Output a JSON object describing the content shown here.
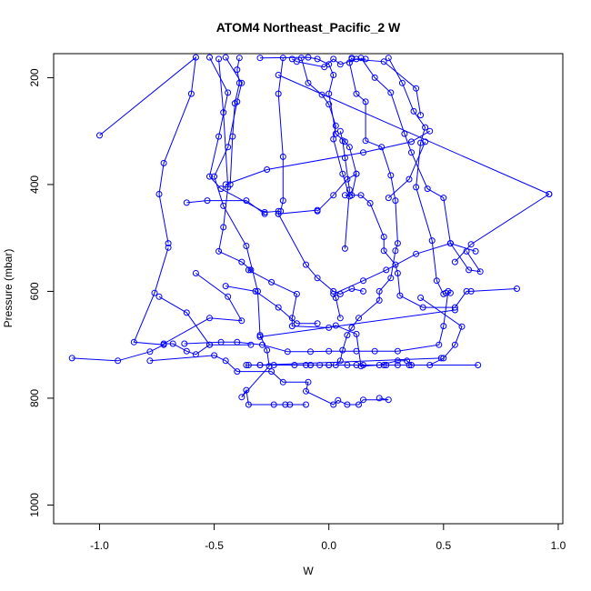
{
  "chart_data": {
    "type": "line",
    "title": "ATOM4 Northeast_Pacific_2 W",
    "xlabel": "W",
    "ylabel": "Pressure (mbar)",
    "xlim": [
      -1.2,
      1.02
    ],
    "ylim": [
      1035,
      155
    ],
    "y_reversed": true,
    "xticks": [
      -1.0,
      -0.5,
      0.0,
      0.5,
      1.0
    ],
    "xtick_labels": [
      "-1.0",
      "-0.5",
      "0.0",
      "0.5",
      "1.0"
    ],
    "yticks": [
      200,
      400,
      600,
      800,
      1000
    ],
    "ytick_labels": [
      "200",
      "400",
      "600",
      "800",
      "1000"
    ],
    "grid": false,
    "legend": "none",
    "line_color": "#0000ff",
    "marker": "open-circle",
    "series": [
      {
        "points": [
          [
            -0.45,
            162
          ],
          [
            -0.38,
            210
          ],
          [
            -0.4,
            245
          ],
          [
            -0.44,
            330
          ],
          [
            -0.5,
            385
          ],
          [
            -0.46,
            440
          ],
          [
            -0.36,
            515
          ],
          [
            -0.31,
            600
          ],
          [
            -0.3,
            682
          ],
          [
            -0.27,
            710
          ],
          [
            -0.26,
            740
          ],
          [
            -0.38,
            798
          ],
          [
            -0.36,
            785
          ],
          [
            -0.35,
            812
          ],
          [
            -0.24,
            812
          ],
          [
            -0.19,
            812
          ],
          [
            -0.17,
            812
          ],
          [
            -0.1,
            812
          ]
        ]
      },
      {
        "points": [
          [
            -0.52,
            162
          ],
          [
            -0.44,
            228
          ],
          [
            -0.48,
            310
          ],
          [
            -0.52,
            385
          ],
          [
            -0.47,
            408
          ],
          [
            -0.28,
            452
          ],
          [
            -0.22,
            450
          ],
          [
            -0.22,
            455
          ],
          [
            -0.05,
            448
          ]
        ]
      },
      {
        "points": [
          [
            -0.48,
            165
          ],
          [
            -0.46,
            265
          ],
          [
            -0.44,
            405
          ],
          [
            -0.46,
            480
          ],
          [
            -0.48,
            525
          ],
          [
            -0.38,
            545
          ],
          [
            -0.34,
            560
          ],
          [
            -0.35,
            560
          ],
          [
            -0.25,
            583
          ],
          [
            -0.14,
            605
          ],
          [
            -0.16,
            650
          ],
          [
            -0.16,
            665
          ],
          [
            0.0,
            668
          ],
          [
            0.03,
            664
          ],
          [
            0.12,
            680
          ],
          [
            0.14,
            740
          ],
          [
            0.22,
            738
          ],
          [
            0.3,
            730
          ],
          [
            0.34,
            730
          ],
          [
            0.36,
            738
          ]
        ]
      },
      {
        "points": [
          [
            -0.58,
            566
          ],
          [
            -0.44,
            610
          ],
          [
            -0.38,
            655
          ],
          [
            -0.52,
            650
          ],
          [
            -0.72,
            698
          ],
          [
            -0.68,
            698
          ],
          [
            -0.62,
            712
          ],
          [
            -0.58,
            718
          ],
          [
            -0.52,
            700
          ]
        ]
      },
      {
        "points": [
          [
            -0.7,
            518
          ],
          [
            -0.76,
            603
          ],
          [
            -0.85,
            695
          ],
          [
            -0.72,
            700
          ],
          [
            -0.78,
            713
          ],
          [
            -0.92,
            730
          ],
          [
            -1.12,
            725
          ]
        ]
      },
      {
        "points": [
          [
            -1.0,
            308
          ],
          [
            -0.58,
            162
          ],
          [
            -0.6,
            230
          ],
          [
            -0.72,
            360
          ],
          [
            -0.74,
            418
          ],
          [
            -0.7,
            510
          ]
        ]
      },
      {
        "points": [
          [
            -0.62,
            434
          ],
          [
            -0.53,
            430
          ],
          [
            -0.36,
            430
          ],
          [
            -0.28,
            455
          ]
        ]
      },
      {
        "points": [
          [
            -0.78,
            730
          ],
          [
            -0.5,
            720
          ],
          [
            -0.45,
            730
          ],
          [
            -0.4,
            750
          ],
          [
            -0.25,
            750
          ],
          [
            -0.2,
            770
          ],
          [
            -0.09,
            770
          ],
          [
            -0.1,
            787
          ],
          [
            0.02,
            812
          ],
          [
            0.04,
            804
          ],
          [
            0.08,
            812
          ],
          [
            0.13,
            812
          ],
          [
            0.15,
            803
          ],
          [
            0.26,
            803
          ],
          [
            0.22,
            800
          ]
        ]
      },
      {
        "points": [
          [
            -0.39,
            163
          ],
          [
            -0.4,
            185
          ],
          [
            -0.39,
            210
          ],
          [
            -0.41,
            248
          ],
          [
            -0.42,
            310
          ],
          [
            -0.43,
            400
          ]
        ]
      },
      {
        "points": [
          [
            -0.2,
            163
          ],
          [
            -0.22,
            230
          ],
          [
            -0.2,
            348
          ],
          [
            -0.2,
            430
          ],
          [
            -0.21,
            450
          ]
        ]
      },
      {
        "points": [
          [
            -0.12,
            163
          ],
          [
            -0.09,
            210
          ],
          [
            -0.03,
            232
          ],
          [
            0.0,
            250
          ],
          [
            0.03,
            290
          ],
          [
            0.02,
            315
          ],
          [
            0.06,
            380
          ],
          [
            0.09,
            422
          ],
          [
            0.07,
            420
          ],
          [
            0.14,
            420
          ],
          [
            0.18,
            435
          ],
          [
            0.24,
            498
          ],
          [
            0.24,
            524
          ],
          [
            0.29,
            550
          ],
          [
            0.3,
            566
          ],
          [
            0.31,
            608
          ],
          [
            0.41,
            630
          ],
          [
            0.55,
            630
          ],
          [
            0.6,
            600
          ],
          [
            0.62,
            600
          ],
          [
            0.82,
            595
          ]
        ]
      },
      {
        "points": [
          [
            -0.3,
            163
          ],
          [
            -0.09,
            162
          ],
          [
            -0.05,
            165
          ],
          [
            0.0,
            175
          ],
          [
            0.02,
            195
          ],
          [
            0.0,
            230
          ],
          [
            0.03,
            305
          ],
          [
            0.07,
            320
          ],
          [
            0.09,
            330
          ],
          [
            0.12,
            380
          ],
          [
            0.1,
            420
          ]
        ]
      },
      {
        "points": [
          [
            0.1,
            163
          ],
          [
            0.09,
            172
          ],
          [
            0.12,
            230
          ],
          [
            0.16,
            245
          ],
          [
            0.16,
            318
          ],
          [
            0.23,
            330
          ],
          [
            0.27,
            383
          ],
          [
            0.29,
            430
          ],
          [
            0.3,
            510
          ],
          [
            0.29,
            524
          ],
          [
            0.27,
            575
          ],
          [
            0.22,
            600
          ],
          [
            0.22,
            617
          ],
          [
            0.13,
            650
          ],
          [
            0.1,
            668
          ],
          [
            0.08,
            682
          ],
          [
            0.06,
            710
          ],
          [
            0.05,
            730
          ],
          [
            0.03,
            738
          ],
          [
            -0.04,
            738
          ],
          [
            -0.08,
            738
          ]
        ]
      },
      {
        "points": [
          [
            0.14,
            163
          ],
          [
            0.2,
            200
          ],
          [
            0.27,
            228
          ],
          [
            0.33,
            305
          ],
          [
            0.36,
            340
          ],
          [
            0.43,
            408
          ],
          [
            0.5,
            425
          ],
          [
            0.53,
            510
          ],
          [
            0.61,
            560
          ],
          [
            0.66,
            563
          ],
          [
            0.6,
            525
          ]
        ]
      },
      {
        "points": [
          [
            0.26,
            163
          ],
          [
            0.32,
            210
          ],
          [
            0.37,
            263
          ],
          [
            0.42,
            293
          ],
          [
            0.4,
            322
          ],
          [
            0.38,
            405
          ],
          [
            0.45,
            505
          ],
          [
            0.47,
            580
          ],
          [
            0.5,
            605
          ],
          [
            0.51,
            603
          ]
        ]
      },
      {
        "points": [
          [
            0.96,
            418
          ],
          [
            0.62,
            512
          ],
          [
            0.55,
            545
          ]
        ]
      },
      {
        "points": [
          [
            0.42,
            320
          ],
          [
            0.35,
            390
          ],
          [
            0.26,
            425
          ]
        ]
      },
      {
        "points": [
          [
            -0.22,
            195
          ],
          [
            0.96,
            418
          ]
        ]
      },
      {
        "points": [
          [
            0.64,
            525
          ],
          [
            0.53,
            510
          ],
          [
            0.38,
            530
          ],
          [
            0.25,
            560
          ],
          [
            0.15,
            580
          ],
          [
            0.02,
            605
          ],
          [
            0.03,
            612
          ],
          [
            0.05,
            650
          ]
        ]
      },
      {
        "points": [
          [
            0.4,
            612
          ],
          [
            0.58,
            666
          ],
          [
            0.55,
            700
          ],
          [
            0.5,
            725
          ],
          [
            0.44,
            738
          ],
          [
            0.35,
            738
          ],
          [
            0.24,
            738
          ],
          [
            0.12,
            738
          ],
          [
            0.0,
            738
          ],
          [
            -0.08,
            738
          ]
        ]
      },
      {
        "points": [
          [
            -0.63,
            698
          ],
          [
            -0.47,
            695
          ],
          [
            -0.4,
            695
          ],
          [
            -0.29,
            700
          ],
          [
            -0.18,
            713
          ],
          [
            -0.08,
            713
          ],
          [
            0.0,
            712
          ],
          [
            0.12,
            712
          ],
          [
            0.2,
            712
          ],
          [
            0.3,
            712
          ],
          [
            0.48,
            700
          ],
          [
            0.5,
            665
          ],
          [
            0.52,
            600
          ],
          [
            0.53,
            603
          ]
        ]
      },
      {
        "points": [
          [
            -0.3,
            685
          ],
          [
            0.55,
            635
          ]
        ]
      },
      {
        "points": [
          [
            -0.36,
            738
          ],
          [
            0.65,
            738
          ]
        ]
      },
      {
        "points": [
          [
            -0.3,
            738
          ],
          [
            0.49,
            725
          ]
        ]
      },
      {
        "points": [
          [
            -0.35,
            738
          ],
          [
            0.3,
            738
          ]
        ]
      },
      {
        "points": [
          [
            -0.45,
            590
          ],
          [
            -0.32,
            600
          ],
          [
            -0.22,
            630
          ],
          [
            -0.14,
            660
          ],
          [
            -0.05,
            660
          ]
        ]
      },
      {
        "points": [
          [
            -0.74,
            610
          ],
          [
            -0.62,
            640
          ],
          [
            -0.52,
            700
          ],
          [
            -0.34,
            700
          ]
        ]
      },
      {
        "points": [
          [
            -0.3,
            738
          ],
          [
            -0.24,
            738
          ],
          [
            -0.15,
            738
          ],
          [
            -0.1,
            738
          ],
          [
            0.0,
            738
          ],
          [
            0.08,
            738
          ],
          [
            0.15,
            738
          ],
          [
            0.25,
            738
          ]
        ]
      },
      {
        "points": [
          [
            -0.22,
            455
          ],
          [
            -0.1,
            550
          ],
          [
            -0.05,
            575
          ],
          [
            0.02,
            600
          ],
          [
            0.05,
            605
          ],
          [
            0.1,
            595
          ],
          [
            0.15,
            600
          ]
        ]
      },
      {
        "points": [
          [
            -0.16,
            165
          ],
          [
            -0.14,
            170
          ],
          [
            -0.02,
            180
          ],
          [
            0.02,
            165
          ],
          [
            0.05,
            175
          ],
          [
            0.12,
            165
          ],
          [
            0.16,
            165
          ]
        ]
      },
      {
        "points": [
          [
            -0.45,
            400
          ],
          [
            -0.27,
            372
          ],
          [
            0.15,
            340
          ],
          [
            0.36,
            320
          ],
          [
            0.44,
            300
          ]
        ]
      },
      {
        "points": [
          [
            0.05,
            300
          ],
          [
            0.06,
            318
          ],
          [
            0.07,
            350
          ],
          [
            0.09,
            410
          ],
          [
            0.07,
            520
          ]
        ]
      },
      {
        "points": [
          [
            0.1,
            165
          ],
          [
            0.24,
            170
          ],
          [
            0.38,
            220
          ],
          [
            0.4,
            270
          ]
        ]
      },
      {
        "points": [
          [
            -0.05,
            450
          ],
          [
            0.02,
            420
          ],
          [
            0.08,
            390
          ],
          [
            0.12,
            380
          ]
        ]
      }
    ]
  }
}
